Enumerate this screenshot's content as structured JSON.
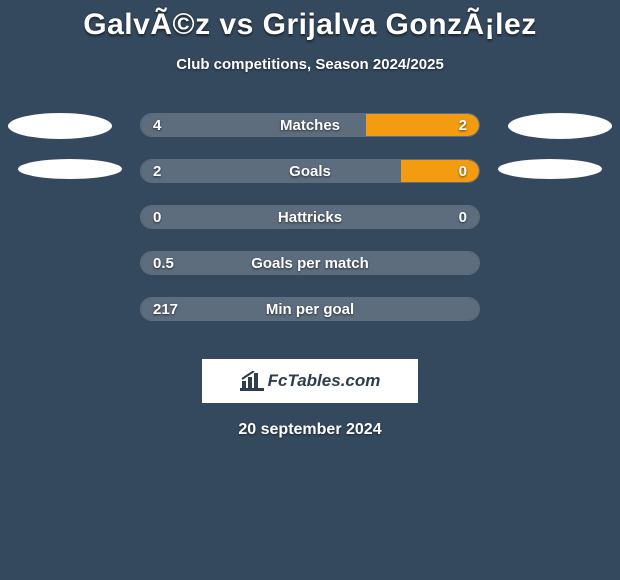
{
  "title": "GalvÃ©z vs Grijalva GonzÃ¡lez",
  "subtitle": "Club competitions, Season 2024/2025",
  "date": "20 september 2024",
  "logo_text": "FcTables.com",
  "colors": {
    "background": "#34495e",
    "bar_left": "#5d6d7e",
    "bar_right": "#f39c12",
    "border": "#5d6d7e",
    "ellipse": "#ffffff",
    "logo_bg": "#ffffff",
    "logo_fg": "#2c3e50"
  },
  "rows": [
    {
      "label": "Matches",
      "left": "4",
      "right": "2",
      "left_pct": 66.6,
      "right_pct": 33.4
    },
    {
      "label": "Goals",
      "left": "2",
      "right": "0",
      "left_pct": 77.0,
      "right_pct": 23.0
    },
    {
      "label": "Hattricks",
      "left": "0",
      "right": "0",
      "left_pct": 100,
      "right_pct": 0
    },
    {
      "label": "Goals per match",
      "left": "0.5",
      "right": "",
      "left_pct": 100,
      "right_pct": 0
    },
    {
      "label": "Min per goal",
      "left": "217",
      "right": "",
      "left_pct": 100,
      "right_pct": 0
    }
  ]
}
